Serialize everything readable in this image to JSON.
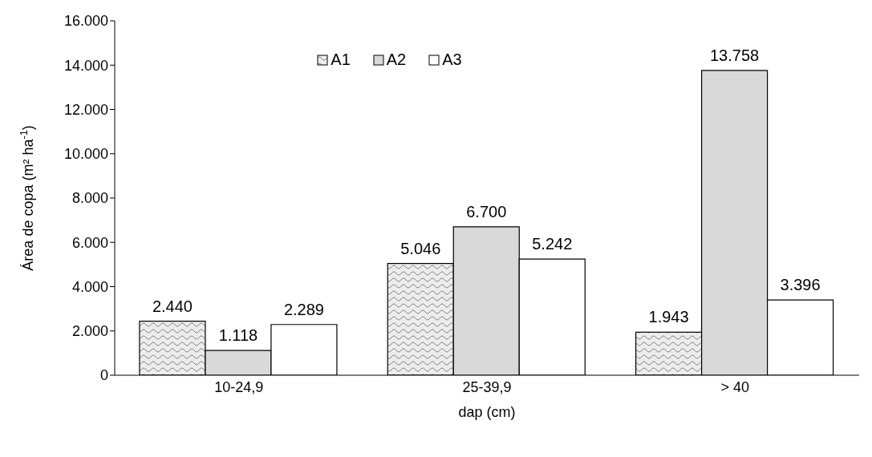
{
  "chart_data": {
    "type": "bar",
    "xlabel": "dap (cm)",
    "ylabel": "Área de copa (m² ha$^{-1}$)",
    "categories": [
      "10-24,9",
      "25-39,9",
      "> 40"
    ],
    "series": [
      {
        "name": "A1",
        "color": "#808080",
        "values": [
          2440,
          5046,
          1943
        ],
        "value_labels": [
          "2.440",
          "5.046",
          "1.943"
        ]
      },
      {
        "name": "A2",
        "color": "#d9d9d9",
        "values": [
          1118,
          6700,
          13758
        ],
        "value_labels": [
          "1.118",
          "6.700",
          "13.758"
        ]
      },
      {
        "name": "A3",
        "color": "#ffffff",
        "values": [
          2289,
          5242,
          3396
        ],
        "value_labels": [
          "2.289",
          "5.242",
          "3.396"
        ]
      }
    ],
    "ylim": [
      0,
      16000
    ],
    "yticks": [
      {
        "value": 0,
        "label": "0"
      },
      {
        "value": 2000,
        "label": "2.000"
      },
      {
        "value": 4000,
        "label": "4.000"
      },
      {
        "value": 6000,
        "label": "6.000"
      },
      {
        "value": 8000,
        "label": "8.000"
      },
      {
        "value": 10000,
        "label": "10.000"
      },
      {
        "value": 12000,
        "label": "12.000"
      },
      {
        "value": 14000,
        "label": "14.000"
      },
      {
        "value": 16000,
        "label": "16.000"
      }
    ],
    "grid": false,
    "legend": "top"
  }
}
